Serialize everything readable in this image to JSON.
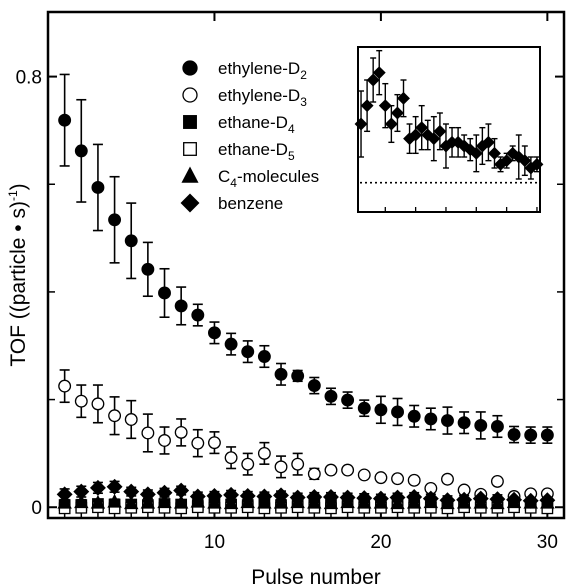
{
  "chart_data": {
    "type": "scatter",
    "xlabel": "Pulse number",
    "ylabel": {
      "main": "TOF ((particle • s)",
      "sup": "-1",
      "end": ")"
    },
    "xlim": [
      0,
      31
    ],
    "ylim": [
      -0.02,
      0.92
    ],
    "xticks": [
      10,
      20,
      30
    ],
    "xtick_labels": [
      "10",
      "20",
      "30"
    ],
    "yticks": [
      0,
      0.8
    ],
    "ytick_labels": [
      "0",
      "0.8"
    ],
    "yticks_minor": [
      0.2,
      0.4,
      0.6
    ],
    "grid": false,
    "legend_position": "top-center",
    "series": [
      {
        "name": "ethylene-D",
        "sub": "2",
        "marker": "circle-filled",
        "x": [
          1,
          2,
          3,
          4,
          5,
          6,
          7,
          8,
          9,
          10,
          11,
          12,
          13,
          14,
          15,
          16,
          17,
          18,
          19,
          20,
          21,
          22,
          23,
          24,
          25,
          26,
          27,
          28,
          29,
          30
        ],
        "y": [
          0.719,
          0.662,
          0.594,
          0.534,
          0.495,
          0.442,
          0.398,
          0.374,
          0.357,
          0.324,
          0.303,
          0.289,
          0.28,
          0.247,
          0.244,
          0.226,
          0.206,
          0.199,
          0.184,
          0.181,
          0.177,
          0.169,
          0.164,
          0.161,
          0.157,
          0.152,
          0.15,
          0.135,
          0.134,
          0.134
        ],
        "err": [
          0.085,
          0.095,
          0.08,
          0.08,
          0.07,
          0.05,
          0.045,
          0.035,
          0.02,
          0.02,
          0.02,
          0.02,
          0.02,
          0.02,
          0.01,
          0.015,
          0.015,
          0.015,
          0.015,
          0.025,
          0.025,
          0.02,
          0.02,
          0.025,
          0.02,
          0.025,
          0.02,
          0.015,
          0.015,
          0.015
        ]
      },
      {
        "name": "ethylene-D",
        "sub": "3",
        "marker": "circle-open",
        "x": [
          1,
          2,
          3,
          4,
          5,
          6,
          7,
          8,
          9,
          10,
          11,
          12,
          13,
          14,
          15,
          16,
          17,
          18,
          19,
          20,
          21,
          22,
          23,
          24,
          25,
          26,
          27,
          28,
          29,
          30
        ],
        "y": [
          0.225,
          0.197,
          0.192,
          0.17,
          0.163,
          0.138,
          0.124,
          0.139,
          0.119,
          0.12,
          0.092,
          0.08,
          0.1,
          0.075,
          0.08,
          0.062,
          0.069,
          0.069,
          0.06,
          0.055,
          0.053,
          0.05,
          0.035,
          0.052,
          0.032,
          0.024,
          0.048,
          0.02,
          0.025,
          0.025
        ],
        "err": [
          0.03,
          0.03,
          0.035,
          0.035,
          0.035,
          0.035,
          0.025,
          0.025,
          0.025,
          0.02,
          0.02,
          0.02,
          0.02,
          0.02,
          0.02,
          0.01,
          0.005,
          0.005,
          0.005,
          0.005,
          0.005,
          0.005,
          0.005,
          0.005,
          0.005,
          0.005,
          0.005,
          0.005,
          0.005,
          0.005
        ]
      },
      {
        "name": "ethane-D",
        "sub": "4",
        "marker": "square-filled",
        "x": [
          1,
          2,
          3,
          4,
          5,
          6,
          7,
          8,
          9,
          10,
          11,
          12,
          13,
          14,
          15,
          16,
          17,
          18,
          19,
          20,
          21,
          22,
          23,
          24,
          25,
          26,
          27,
          28,
          29,
          30
        ],
        "y": [
          0.004,
          0.004,
          0.006,
          0.005,
          0.005,
          0.004,
          0.006,
          0.005,
          0.004,
          0.006,
          0.005,
          0.004,
          0.005,
          0.004,
          0.006,
          0.005,
          0.004,
          0.005,
          0.004,
          0.005,
          0.004,
          0.004,
          0.005,
          0.004,
          0.005,
          0.004,
          0.005,
          0.004,
          0.004,
          0.005
        ],
        "err": [
          0.006,
          0.006,
          0.006,
          0.006,
          0.006,
          0.006,
          0.006,
          0.006,
          0.006,
          0.006,
          0.006,
          0.006,
          0.006,
          0.006,
          0.006,
          0.006,
          0.006,
          0.006,
          0.006,
          0.006,
          0.006,
          0.006,
          0.006,
          0.006,
          0.006,
          0.006,
          0.006,
          0.006,
          0.006,
          0.006
        ]
      },
      {
        "name": "ethane-D",
        "sub": "5",
        "marker": "square-open",
        "x": [
          1,
          2,
          3,
          4,
          5,
          6,
          7,
          8,
          9,
          10,
          11,
          12,
          13,
          14,
          15,
          16,
          17,
          18,
          19,
          20,
          21,
          22,
          23,
          24,
          25,
          26,
          27,
          28,
          29,
          30
        ],
        "y": [
          -0.002,
          -0.001,
          0.0,
          -0.002,
          -0.001,
          0.0,
          -0.001,
          -0.002,
          0.0,
          -0.001,
          -0.001,
          0.0,
          -0.002,
          -0.001,
          0.0,
          -0.001,
          -0.002,
          0.0,
          -0.001,
          -0.001,
          0.0,
          -0.001,
          -0.001,
          -0.002,
          0.0,
          -0.001,
          -0.001,
          0.0,
          -0.001,
          -0.002
        ],
        "err": [
          0.005,
          0.005,
          0.005,
          0.005,
          0.005,
          0.005,
          0.005,
          0.005,
          0.005,
          0.005,
          0.005,
          0.005,
          0.005,
          0.005,
          0.005,
          0.005,
          0.005,
          0.005,
          0.005,
          0.005,
          0.005,
          0.005,
          0.005,
          0.005,
          0.005,
          0.005,
          0.005,
          0.005,
          0.005,
          0.005
        ]
      },
      {
        "name": "C",
        "sub": "4",
        "name_suffix": "-molecules",
        "marker": "triangle-filled",
        "x": [
          1,
          2,
          3,
          4,
          5,
          6,
          7,
          8,
          9,
          10,
          11,
          12,
          13,
          14,
          15,
          16,
          17,
          18,
          19,
          20,
          21,
          22,
          23,
          24,
          25,
          26,
          27,
          28,
          29,
          30
        ],
        "y": [
          0.008,
          0.009,
          0.008,
          0.01,
          0.007,
          0.008,
          0.009,
          0.008,
          0.01,
          0.008,
          0.007,
          0.009,
          0.008,
          0.008,
          0.009,
          0.008,
          0.007,
          0.009,
          0.008,
          0.008,
          0.007,
          0.008,
          0.009,
          0.007,
          0.008,
          0.008,
          0.007,
          0.009,
          0.008,
          0.008
        ],
        "err": [
          0.005,
          0.005,
          0.005,
          0.005,
          0.005,
          0.005,
          0.005,
          0.005,
          0.005,
          0.005,
          0.005,
          0.005,
          0.005,
          0.005,
          0.005,
          0.005,
          0.005,
          0.005,
          0.005,
          0.005,
          0.005,
          0.005,
          0.005,
          0.005,
          0.005,
          0.005,
          0.005,
          0.005,
          0.005,
          0.005
        ]
      },
      {
        "name": "benzene",
        "sub": "",
        "marker": "diamond-filled",
        "x": [
          1,
          2,
          3,
          4,
          5,
          6,
          7,
          8,
          9,
          10,
          11,
          12,
          13,
          14,
          15,
          16,
          17,
          18,
          19,
          20,
          21,
          22,
          23,
          24,
          25,
          26,
          27,
          28,
          29,
          30
        ],
        "y": [
          0.024,
          0.029,
          0.036,
          0.038,
          0.029,
          0.024,
          0.027,
          0.031,
          0.02,
          0.021,
          0.023,
          0.021,
          0.02,
          0.022,
          0.018,
          0.019,
          0.019,
          0.018,
          0.017,
          0.016,
          0.018,
          0.019,
          0.016,
          0.013,
          0.014,
          0.016,
          0.015,
          0.014,
          0.012,
          0.013
        ],
        "err": [
          0.01,
          0.01,
          0.01,
          0.01,
          0.008,
          0.008,
          0.008,
          0.008,
          0.008,
          0.008,
          0.008,
          0.008,
          0.008,
          0.008,
          0.008,
          0.008,
          0.008,
          0.008,
          0.008,
          0.008,
          0.008,
          0.008,
          0.008,
          0.008,
          0.008,
          0.008,
          0.008,
          0.008,
          0.008,
          0.008
        ]
      }
    ],
    "inset": {
      "series_name": "benzene",
      "marker": "diamond-filled",
      "baseline_style": "dotted",
      "x": [
        1,
        2,
        3,
        4,
        5,
        6,
        7,
        8,
        9,
        10,
        11,
        12,
        13,
        14,
        15,
        16,
        17,
        18,
        19,
        20,
        21,
        22,
        23,
        24,
        25,
        26,
        27,
        28,
        29,
        30
      ],
      "y": [
        0.024,
        0.029,
        0.036,
        0.038,
        0.029,
        0.024,
        0.027,
        0.031,
        0.02,
        0.021,
        0.023,
        0.021,
        0.02,
        0.022,
        0.018,
        0.019,
        0.019,
        0.018,
        0.017,
        0.016,
        0.018,
        0.019,
        0.016,
        0.013,
        0.014,
        0.016,
        0.015,
        0.014,
        0.012,
        0.013
      ],
      "err": [
        0.009,
        0.007,
        0.006,
        0.006,
        0.006,
        0.005,
        0.005,
        0.005,
        0.004,
        0.005,
        0.006,
        0.004,
        0.006,
        0.005,
        0.006,
        0.004,
        0.004,
        0.003,
        0.003,
        0.005,
        0.005,
        0.005,
        0.004,
        0.002,
        0.002,
        0.002,
        0.006,
        0.004,
        0.003,
        0.002
      ],
      "xlim": [
        0.5,
        30.5
      ],
      "ylim": [
        0.0,
        0.045
      ],
      "baseline_y": 0.008
    }
  }
}
